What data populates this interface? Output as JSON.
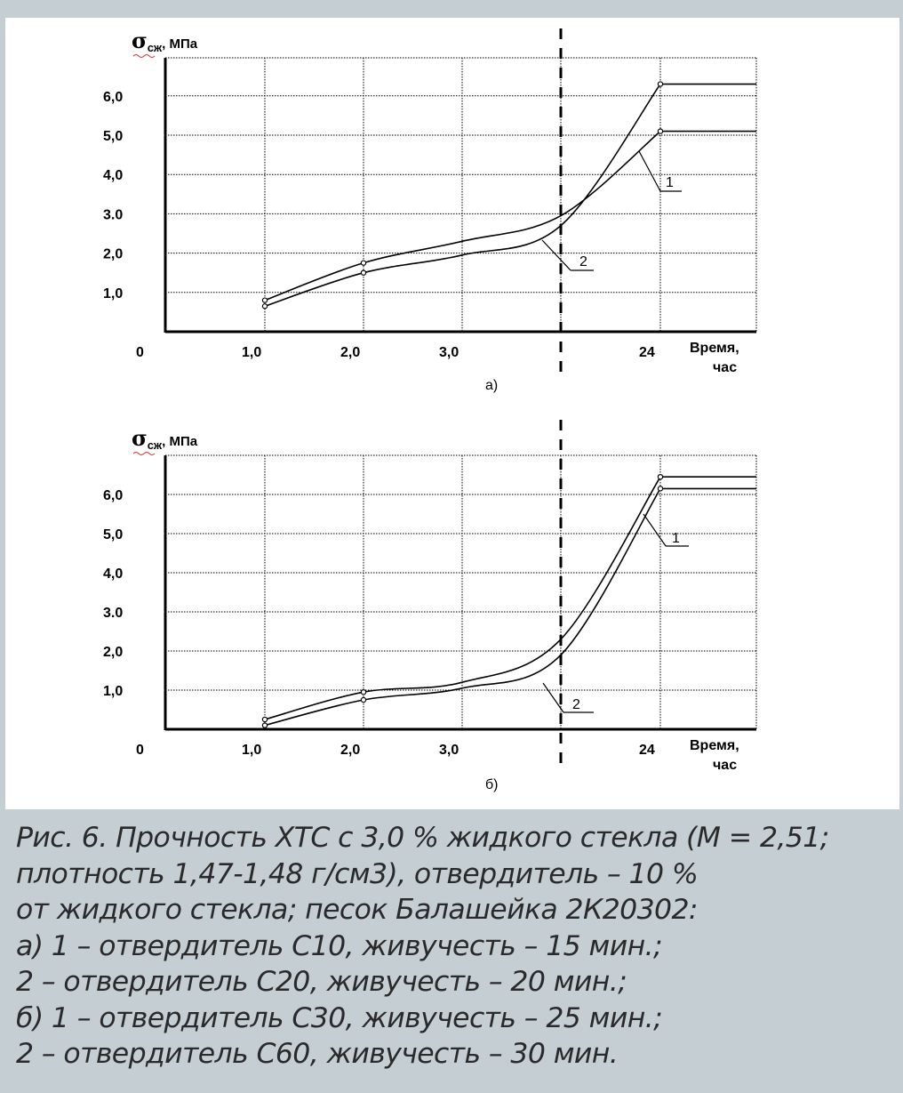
{
  "chart_data": [
    {
      "type": "line",
      "sublabel": "а)",
      "ylabel_main": "σ",
      "ylabel_sub": "сж",
      "ylabel_unit": ", МПа",
      "xlabel": [
        "Время,",
        "час"
      ],
      "origin_label": "0",
      "ylim": [
        0,
        7.0
      ],
      "y_ticks": [
        "1,0",
        "2,0",
        "3.0",
        "4,0",
        "5,0",
        "6,0"
      ],
      "x_ticks": [
        "1,0",
        "2,0",
        "3,0",
        "24"
      ],
      "grid": true,
      "series": [
        {
          "name": "1",
          "x": [
            1.0,
            2.0,
            3.0,
            4.0,
            5.0,
            6.0
          ],
          "y": [
            0.8,
            1.75,
            2.3,
            2.95,
            5.1,
            5.1
          ]
        },
        {
          "name": "2",
          "x": [
            1.0,
            2.0,
            3.0,
            4.0,
            5.0,
            6.0
          ],
          "y": [
            0.65,
            1.5,
            1.95,
            2.7,
            6.3,
            6.3
          ]
        }
      ]
    },
    {
      "type": "line",
      "sublabel": "б)",
      "ylabel_main": "σ",
      "ylabel_sub": "сж",
      "ylabel_unit": ", МПа",
      "xlabel": [
        "Время,",
        "час"
      ],
      "origin_label": "0",
      "ylim": [
        0,
        7.0
      ],
      "y_ticks": [
        "1,0",
        "2,0",
        "3.0",
        "4,0",
        "5,0",
        "6,0"
      ],
      "x_ticks": [
        "1,0",
        "2,0",
        "3,0",
        "24"
      ],
      "grid": true,
      "series": [
        {
          "name": "1",
          "x": [
            1.0,
            2.0,
            3.0,
            4.0,
            5.0,
            6.0
          ],
          "y": [
            0.25,
            0.95,
            1.2,
            2.3,
            6.45,
            6.45
          ]
        },
        {
          "name": "2",
          "x": [
            1.0,
            2.0,
            3.0,
            4.0,
            5.0,
            6.0
          ],
          "y": [
            0.1,
            0.75,
            1.05,
            1.9,
            6.15,
            6.15
          ]
        }
      ]
    }
  ],
  "caption": [
    "Рис. 6. Прочность ХТС с 3,0 % жидкого стекла (М = 2,51;",
    "плотность 1,47-1,48 г/см3), отвердитель – 10 %",
    "от жидкого стекла; песок Балашейка 2К20302:",
    "а) 1 – отвердитель С10, живучесть – 15 мин.;",
    "2 – отвердитель С20, живучесть – 20 мин.;",
    "б) 1 – отвердитель С30, живучесть – 25 мин.;",
    "2 – отвердитель С60, живучесть – 30 мин."
  ]
}
